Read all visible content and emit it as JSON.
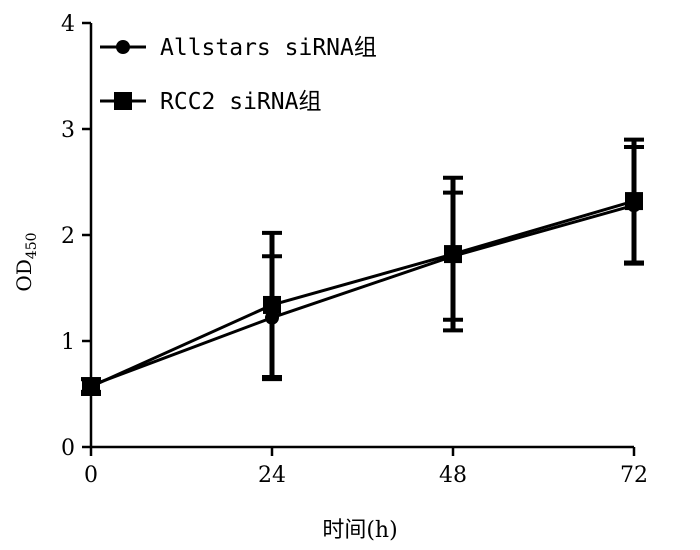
{
  "chart_data": {
    "type": "line",
    "title": "",
    "xlabel": "时间(h)",
    "ylabel": "OD",
    "ylabel_subscript": "450",
    "x": [
      0,
      24,
      48,
      72
    ],
    "x_tick_labels": [
      "0",
      "24",
      "48",
      "72"
    ],
    "xlim": [
      0,
      72
    ],
    "ylim": [
      0,
      4
    ],
    "y_ticks": [
      0,
      1,
      2,
      3,
      4
    ],
    "y_tick_labels": [
      "0",
      "1",
      "2",
      "3",
      "4"
    ],
    "grid": false,
    "legend_position": "top-left",
    "series": [
      {
        "name": "Allstars siRNA组",
        "marker": "circle",
        "values": [
          0.58,
          1.22,
          1.8,
          2.28
        ],
        "error": [
          0.06,
          0.58,
          0.6,
          0.55
        ],
        "color": "#000000"
      },
      {
        "name": "RCC2 siRNA组",
        "marker": "square",
        "values": [
          0.57,
          1.34,
          1.82,
          2.32
        ],
        "error": [
          0.07,
          0.68,
          0.72,
          0.58
        ],
        "color": "#000000"
      }
    ]
  }
}
